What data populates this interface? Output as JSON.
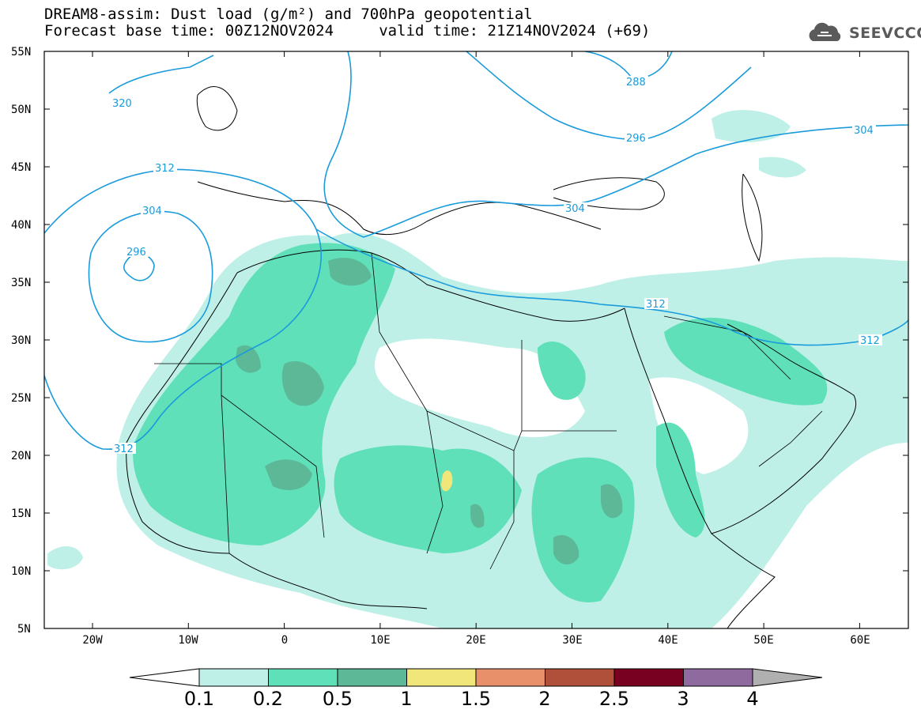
{
  "header": {
    "title_line1": "DREAM8-assim: Dust load (g/m²) and 700hPa geopotential",
    "title_line2": "Forecast base time: 00Z12NOV2024     valid time: 21Z14NOV2024 (+69)",
    "logo_text": "SEEVCCC",
    "logo_icon": "cloud-icon"
  },
  "map": {
    "lat_labels": [
      "55N",
      "50N",
      "45N",
      "40N",
      "35N",
      "30N",
      "25N",
      "20N",
      "15N",
      "10N",
      "5N"
    ],
    "lon_labels": [
      "20W",
      "10W",
      "0",
      "10E",
      "20E",
      "30E",
      "40E",
      "50E",
      "60E"
    ],
    "contour_labels": [
      "320",
      "312",
      "304",
      "296",
      "288",
      "296",
      "304",
      "304",
      "312",
      "312",
      "312"
    ],
    "colors": {
      "contour": "#1a9bdc",
      "border": "#000000"
    }
  },
  "colorbar": {
    "labels": [
      "0.1",
      "0.2",
      "0.5",
      "1",
      "1.5",
      "2",
      "2.5",
      "3",
      "4"
    ],
    "colors": [
      "#ffffff",
      "#bff0e8",
      "#5fe0b8",
      "#5cb896",
      "#f0e67a",
      "#e8906a",
      "#b0503a",
      "#780020",
      "#8e6a9e",
      "#b0b0b0"
    ]
  }
}
